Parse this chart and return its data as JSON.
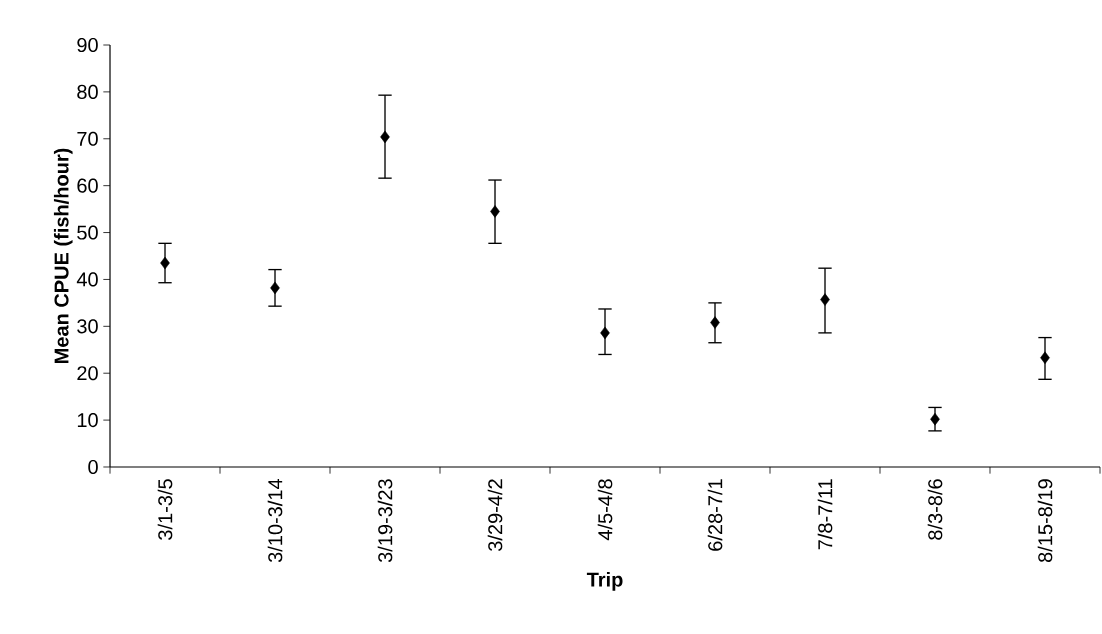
{
  "chart_data": {
    "type": "scatter",
    "xlabel": "Trip",
    "ylabel": "Mean CPUE (fish/hour)",
    "categories": [
      "3/1-3/5",
      "3/10-3/14",
      "3/19-3/23",
      "3/29-4/2",
      "4/5-4/8",
      "6/28-7/1",
      "7/8-7/11",
      "8/3-8/6",
      "8/15-8/19"
    ],
    "values": [
      43.5,
      38.2,
      70.4,
      54.5,
      28.6,
      30.8,
      35.7,
      10.2,
      23.3
    ],
    "errors": [
      [
        39.3,
        47.7
      ],
      [
        34.3,
        42.1
      ],
      [
        61.6,
        79.3
      ],
      [
        47.7,
        61.2
      ],
      [
        24.0,
        33.7
      ],
      [
        26.5,
        35.0
      ],
      [
        28.6,
        42.4
      ],
      [
        7.7,
        12.7
      ],
      [
        18.7,
        27.6
      ]
    ],
    "color": "#000000",
    "marker": "diamond",
    "ylim": [
      0,
      90
    ],
    "yticks": [
      0,
      10,
      20,
      30,
      40,
      50,
      60,
      70,
      80,
      90
    ]
  }
}
